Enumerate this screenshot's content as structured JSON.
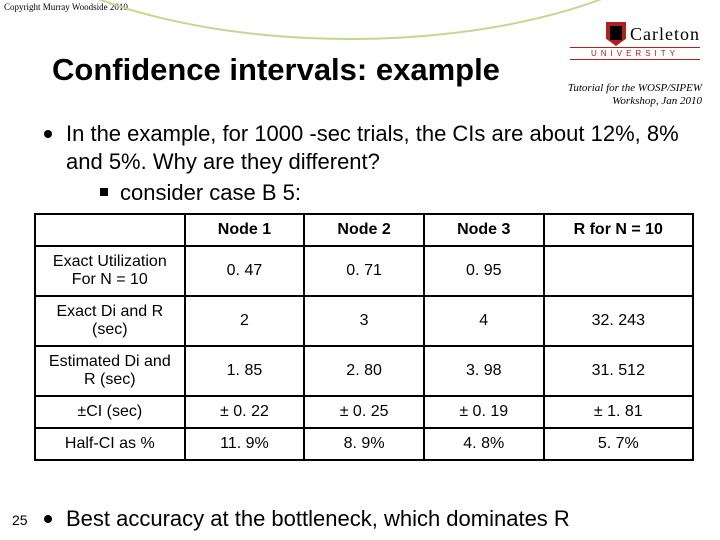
{
  "copyright": "Copyright Murray Woodside 2010",
  "logo": {
    "name": "Carleton",
    "sub": "UNIVERSITY"
  },
  "title": "Confidence intervals: example",
  "subtitle_l1": "Tutorial for the WOSP/SIPEW",
  "subtitle_l2": "Workshop, Jan 2010",
  "bullet1": "In the example, for 1000 -sec trials, the CIs are about 12%, 8% and 5%. Why are they different?",
  "subbullet": "consider case B 5:",
  "table": {
    "headers": [
      "",
      "Node 1",
      "Node 2",
      "Node 3",
      "R for N = 10"
    ],
    "rows": [
      [
        "Exact Utilization For N = 10",
        "0. 47",
        "0. 71",
        "0. 95",
        ""
      ],
      [
        "Exact Di and R (sec)",
        "2",
        "3",
        "4",
        "32. 243"
      ],
      [
        "Estimated Di and R (sec)",
        "1. 85",
        "2. 80",
        "3. 98",
        "31. 512"
      ],
      [
        "±CI   (sec)",
        "± 0. 22",
        "± 0. 25",
        "± 0. 19",
        "± 1. 81"
      ],
      [
        "Half-CI as %",
        "11. 9%",
        "8. 9%",
        "4. 8%",
        "5. 7%"
      ]
    ],
    "col_widths": [
      "150px",
      "120px",
      "120px",
      "120px",
      "150px"
    ]
  },
  "bullet2": "Best accuracy at the bottleneck, which dominates R",
  "page": "25",
  "colors": {
    "curve": "#c0d890",
    "shield": "#b02020"
  }
}
